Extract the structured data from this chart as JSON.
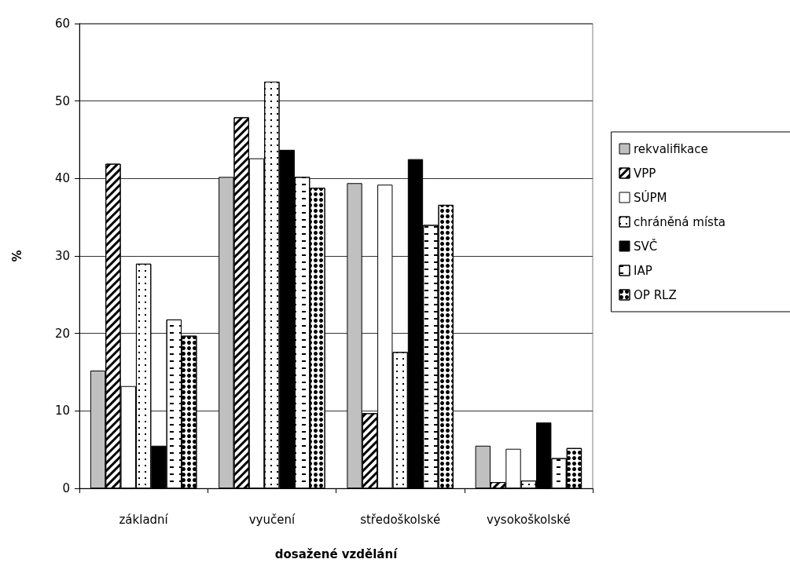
{
  "chart_data": {
    "type": "bar",
    "xlabel": "dosažené vzdělání",
    "ylabel": "%",
    "categories": [
      "základní",
      "vyučení",
      "středoškolské",
      "vysokoškolské"
    ],
    "series": [
      {
        "name": "rekvalifikace",
        "color": "#c0c0c0",
        "values": [
          15.2,
          40.2,
          39.4,
          5.5
        ]
      },
      {
        "name": "VPP",
        "color": "#ffffff",
        "values": [
          41.9,
          47.9,
          9.7,
          0.8
        ]
      },
      {
        "name": "SÚPM",
        "color": "#ffffff",
        "values": [
          13.2,
          42.6,
          39.2,
          5.1
        ]
      },
      {
        "name": "chráněná místa",
        "color": "#ffffff",
        "values": [
          29.0,
          52.5,
          17.6,
          1.0
        ]
      },
      {
        "name": "SVČ",
        "color": "#000000",
        "values": [
          5.5,
          43.7,
          42.5,
          8.5
        ]
      },
      {
        "name": "IAP",
        "color": "#ffffff",
        "values": [
          21.8,
          40.2,
          34.0,
          3.9
        ]
      },
      {
        "name": "OP RLZ",
        "color": "#ffffff",
        "values": [
          19.7,
          38.8,
          36.6,
          5.2
        ]
      }
    ],
    "ylim": [
      0,
      60
    ],
    "yticks": [
      0,
      10,
      20,
      30,
      40,
      50,
      60
    ],
    "grid": "y",
    "legend": "right"
  }
}
